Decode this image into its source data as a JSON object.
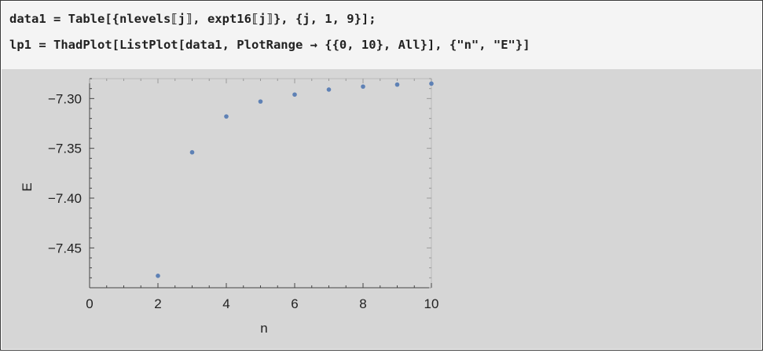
{
  "notebook": {
    "input": {
      "line1": "data1 = Table[{nlevels⟦j⟧, expt16⟦j⟧}, {j, 1, 9}];",
      "line2": "lp1 = ThadPlot[ListPlot[data1, PlotRange → {{0, 10}, All}], {\"n\", \"E\"}]"
    }
  },
  "chart_data": {
    "type": "scatter",
    "xlabel": "n",
    "ylabel": "E",
    "xlim": [
      0,
      10
    ],
    "ylim": [
      -7.49,
      -7.28
    ],
    "x_ticks": [
      "0",
      "2",
      "4",
      "6",
      "8",
      "10"
    ],
    "y_ticks": [
      "−7.30",
      "−7.35",
      "−7.40",
      "−7.45"
    ],
    "x": [
      2,
      3,
      4,
      5,
      6,
      7,
      8,
      9,
      10
    ],
    "y": [
      -7.478,
      -7.354,
      -7.318,
      -7.303,
      -7.296,
      -7.291,
      -7.288,
      -7.286,
      -7.285
    ],
    "marker_color": "#5e81b5",
    "grid": false
  }
}
